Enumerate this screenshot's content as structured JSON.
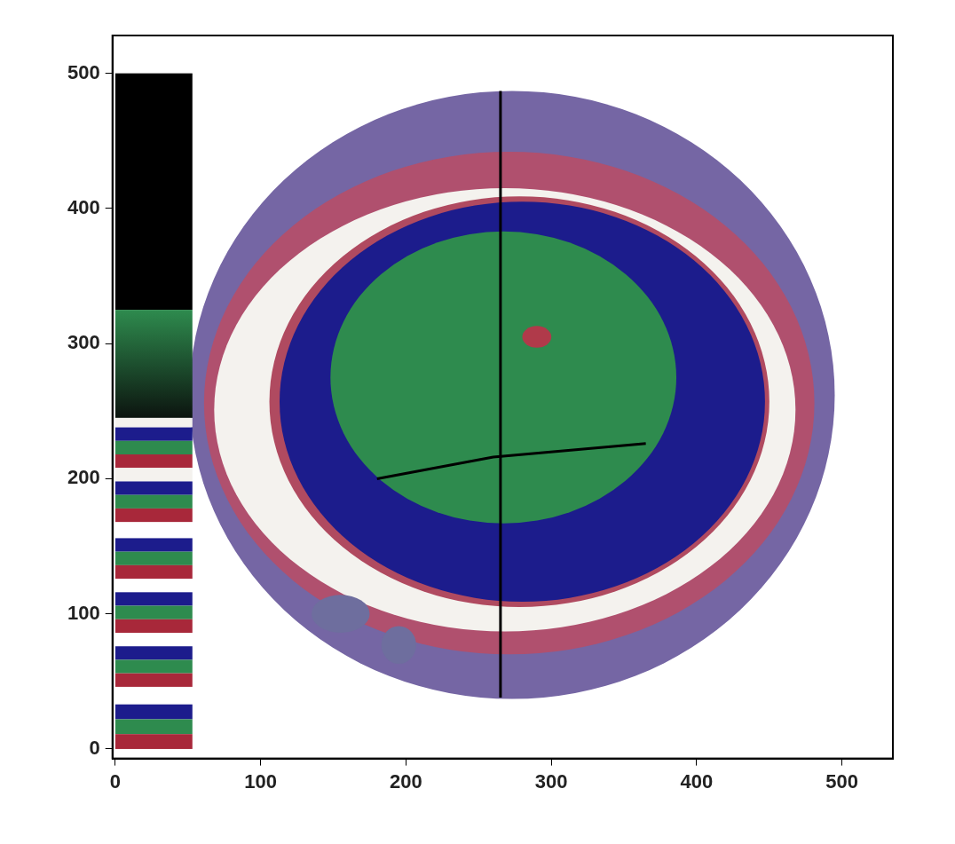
{
  "chart_data": {
    "type": "image",
    "xlim": [
      -2,
      535
    ],
    "ylim": [
      -7,
      528
    ],
    "xticks": [
      0,
      100,
      200,
      300,
      400,
      500
    ],
    "yticks": [
      0,
      100,
      200,
      300,
      400,
      500
    ],
    "grid": false,
    "colorbar": {
      "x": [
        0,
        53
      ],
      "bands": [
        {
          "y": [
            325,
            500
          ],
          "color": "#000000"
        },
        {
          "y": [
            245,
            325
          ],
          "colors": [
            "#2e8b4e",
            "#0c140f"
          ]
        },
        {
          "y": [
            238,
            245
          ],
          "color": "#f4f2ee"
        },
        {
          "y": [
            228,
            238
          ],
          "color": "#1c1c8c"
        },
        {
          "y": [
            218,
            228
          ],
          "color": "#2e8b4e"
        },
        {
          "y": [
            208,
            218
          ],
          "color": "#a8283a"
        },
        {
          "y": [
            198,
            208
          ],
          "color": "#f4f2ee"
        },
        {
          "y": [
            188,
            198
          ],
          "color": "#1c1c8c"
        },
        {
          "y": [
            178,
            188
          ],
          "color": "#2e8b4e"
        },
        {
          "y": [
            168,
            178
          ],
          "color": "#a8283a"
        },
        {
          "y": [
            146,
            156
          ],
          "color": "#1c1c8c"
        },
        {
          "y": [
            136,
            146
          ],
          "color": "#2e8b4e"
        },
        {
          "y": [
            126,
            136
          ],
          "color": "#a8283a"
        },
        {
          "y": [
            106,
            116
          ],
          "color": "#1c1c8c"
        },
        {
          "y": [
            96,
            106
          ],
          "color": "#2e8b4e"
        },
        {
          "y": [
            86,
            96
          ],
          "color": "#a8283a"
        },
        {
          "y": [
            66,
            76
          ],
          "color": "#1c1c8c"
        },
        {
          "y": [
            56,
            66
          ],
          "color": "#2e8b4e"
        },
        {
          "y": [
            46,
            56
          ],
          "color": "#a8283a"
        },
        {
          "y": [
            22,
            33
          ],
          "color": "#1c1c8c"
        },
        {
          "y": [
            11,
            22
          ],
          "color": "#2e8b4e"
        },
        {
          "y": [
            0,
            11
          ],
          "color": "#a8283a"
        }
      ]
    },
    "regions": [
      {
        "center": [
          273,
          262
        ],
        "radii": [
          222,
          225
        ],
        "color": "#7566a4"
      },
      {
        "center": [
          271,
          256
        ],
        "radii": [
          210,
          186
        ],
        "color": "#b0506e"
      },
      {
        "center": [
          268,
          251
        ],
        "radii": [
          200,
          164
        ],
        "color": "#f4f2ee"
      },
      {
        "center": [
          278,
          257
        ],
        "radii": [
          172,
          152
        ],
        "color": "#b04a60"
      },
      {
        "center": [
          280,
          257
        ],
        "radii": [
          167,
          148
        ],
        "color": "#1c1c8c"
      },
      {
        "center": [
          267,
          275
        ],
        "radii": [
          119,
          108
        ],
        "color": "#2e8b4e"
      },
      {
        "center": [
          290,
          305
        ],
        "radii": [
          10,
          8
        ],
        "color": "#b03a4a"
      },
      {
        "center": [
          155,
          100
        ],
        "radii": [
          20,
          14
        ],
        "color": "#6e6e9e"
      },
      {
        "center": [
          195,
          77
        ],
        "radii": [
          12,
          14
        ],
        "color": "#6e6e9e"
      }
    ],
    "lines": [
      {
        "x": [
          265,
          265
        ],
        "y": [
          38,
          487
        ],
        "color": "#000000"
      },
      {
        "x": [
          180,
          260,
          365
        ],
        "y": [
          200,
          216,
          226
        ],
        "color": "#000000"
      }
    ]
  }
}
